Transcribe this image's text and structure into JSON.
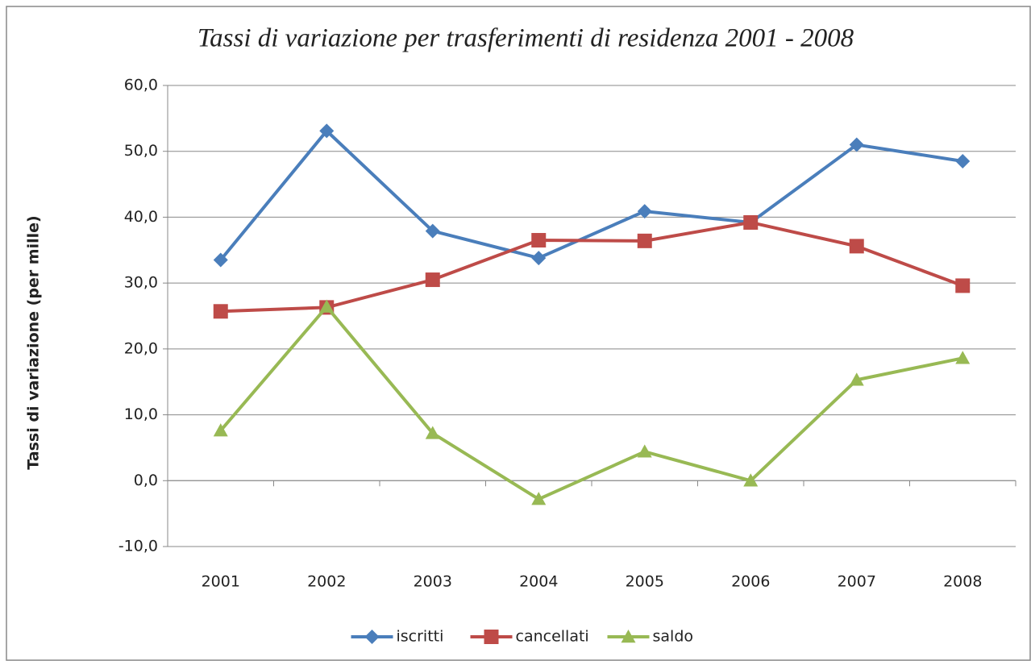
{
  "chart_data": {
    "type": "line",
    "title": "Tassi di variazione per trasferimenti di residenza 2001 - 2008",
    "y_label": "Tassi di variazione (per mille)",
    "categories": [
      "2001",
      "2002",
      "2003",
      "2004",
      "2005",
      "2006",
      "2007",
      "2008"
    ],
    "series": [
      {
        "name": "iscritti",
        "color": "#4a7ebb",
        "marker": "diamond",
        "values": [
          33.5,
          53.1,
          37.9,
          33.8,
          40.9,
          39.2,
          51.0,
          48.5
        ]
      },
      {
        "name": "cancellati",
        "color": "#be4b48",
        "marker": "square",
        "values": [
          25.7,
          26.3,
          30.5,
          36.5,
          36.4,
          39.2,
          35.6,
          29.6
        ]
      },
      {
        "name": "saldo",
        "color": "#98b954",
        "marker": "triangle",
        "values": [
          7.6,
          26.4,
          7.2,
          -2.8,
          4.4,
          0.0,
          15.3,
          18.6
        ]
      }
    ],
    "ylim": [
      -10,
      60
    ],
    "yticks": [
      {
        "value": -10,
        "label": "-10,0"
      },
      {
        "value": 0,
        "label": "0,0"
      },
      {
        "value": 10,
        "label": "10,0"
      },
      {
        "value": 20,
        "label": "20,0"
      },
      {
        "value": 30,
        "label": "30,0"
      },
      {
        "value": 40,
        "label": "40,0"
      },
      {
        "value": 50,
        "label": "50,0"
      },
      {
        "value": 60,
        "label": "60,0"
      }
    ],
    "grid": true,
    "legend": "bottom"
  }
}
